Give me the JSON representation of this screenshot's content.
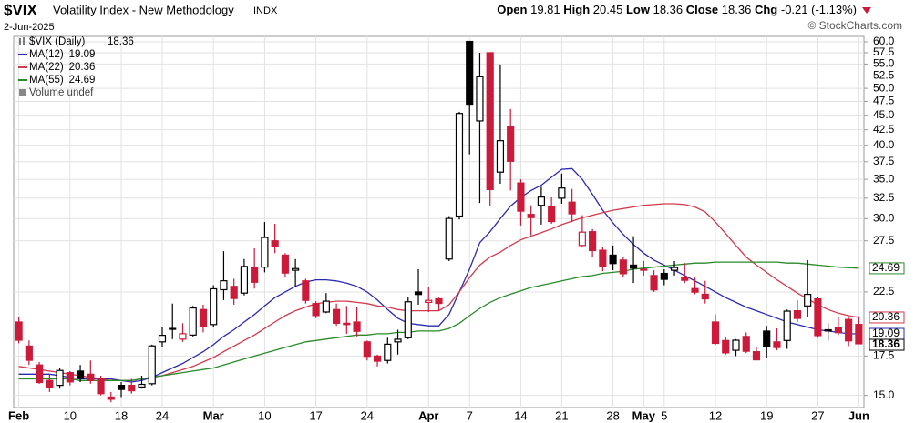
{
  "chart_data": {
    "type": "candlestick",
    "title": "$VIX",
    "subtitle": "Volatility Index - New Methodology",
    "exchange": "INDX",
    "date": "2-Jun-2025",
    "header_labels": [
      "Open",
      "High",
      "Low",
      "Close",
      "Chg"
    ],
    "change": -0.21,
    "change_pct": {
      "value": -1.13,
      "label": "(-1.13%)"
    },
    "watermark": "© StockCharts.com",
    "price_name": "$VIX (Daily)",
    "volume_label": "Volume undef",
    "categories": [
      "Feb",
      null,
      null,
      null,
      null,
      "10",
      null,
      null,
      null,
      null,
      "18",
      null,
      null,
      null,
      "24",
      null,
      null,
      null,
      null,
      "Mar",
      null,
      null,
      null,
      null,
      "10",
      null,
      null,
      null,
      null,
      "17",
      null,
      null,
      null,
      null,
      "24",
      null,
      null,
      null,
      null,
      null,
      "Apr",
      null,
      null,
      null,
      "7",
      null,
      null,
      null,
      null,
      "14",
      null,
      null,
      null,
      "21",
      null,
      null,
      null,
      null,
      "28",
      null,
      null,
      "May",
      null,
      "5",
      null,
      null,
      null,
      null,
      "12",
      null,
      null,
      null,
      null,
      "19",
      null,
      null,
      null,
      null,
      "27",
      null,
      null,
      null,
      "Jun"
    ],
    "open": [
      20.0,
      18.2,
      16.9,
      15.9,
      15.6,
      16.4,
      16.5,
      16.3,
      16.0,
      14.9,
      15.6,
      15.6,
      15.5,
      15.7,
      18.5,
      19.5,
      18.7,
      19.0,
      21.0,
      19.8,
      22.7,
      23.0,
      22.4,
      24.8,
      24.8,
      27.5,
      26.0,
      24.5,
      23.5,
      21.5,
      20.8,
      21.0,
      19.9,
      20.0,
      18.5,
      17.5,
      17.2,
      18.5,
      18.8,
      22.5,
      21.6,
      21.9,
      25.6,
      30.3,
      60.1,
      44.0,
      57.5,
      36.0,
      43.0,
      34.5,
      30.5,
      31.6,
      31.5,
      32.5,
      32.0,
      27.0,
      28.5,
      26.5,
      26.0,
      25.5,
      25.0,
      24.5,
      24.0,
      24.2,
      24.5,
      23.8,
      22.8,
      22.3,
      20.0,
      18.6,
      17.9,
      18.9,
      17.8,
      19.3,
      18.5,
      18.6,
      20.9,
      21.3,
      21.9,
      19.4,
      19.6,
      20.2,
      19.81
    ],
    "high": [
      20.4,
      18.6,
      17.1,
      16.3,
      16.7,
      16.5,
      16.9,
      17.2,
      16.2,
      15.2,
      15.8,
      16.0,
      16.2,
      18.3,
      19.6,
      21.5,
      19.9,
      21.3,
      21.4,
      23.1,
      26.4,
      23.7,
      25.6,
      26.7,
      29.6,
      29.4,
      26.2,
      25.6,
      23.7,
      21.7,
      22.4,
      21.5,
      21.3,
      21.2,
      18.6,
      17.6,
      18.8,
      19.4,
      22.1,
      24.6,
      22.9,
      22.0,
      30.3,
      45.6,
      60.1,
      57.5,
      57.5,
      54.9,
      46.1,
      35.0,
      31.6,
      34.0,
      32.6,
      35.8,
      33.7,
      30.4,
      28.8,
      26.8,
      27.0,
      25.8,
      28.0,
      25.4,
      24.5,
      24.6,
      25.4,
      25.2,
      23.8,
      23.5,
      20.6,
      18.9,
      18.7,
      19.2,
      18.1,
      19.7,
      19.5,
      21.0,
      21.8,
      25.5,
      22.1,
      19.9,
      20.4,
      20.4,
      20.45
    ],
    "low": [
      18.4,
      16.9,
      15.7,
      15.2,
      15.4,
      15.6,
      15.8,
      15.7,
      15.0,
      14.6,
      14.9,
      15.1,
      15.4,
      15.6,
      18.1,
      18.7,
      18.5,
      18.9,
      19.2,
      19.6,
      21.8,
      21.4,
      22.2,
      22.8,
      24.3,
      26.2,
      23.8,
      22.9,
      21.5,
      20.3,
      20.7,
      19.7,
      19.1,
      18.9,
      17.2,
      16.8,
      17.0,
      17.6,
      18.7,
      21.4,
      20.8,
      20.9,
      25.4,
      29.9,
      38.6,
      31.9,
      31.5,
      34.4,
      33.5,
      29.2,
      28.1,
      29.3,
      29.4,
      31.8,
      29.6,
      26.8,
      25.8,
      24.4,
      24.5,
      23.8,
      23.3,
      24.0,
      22.5,
      23.1,
      24.0,
      23.3,
      22.3,
      21.5,
      18.3,
      17.6,
      17.5,
      17.7,
      17.2,
      17.4,
      17.9,
      18.0,
      20.0,
      20.4,
      18.8,
      18.6,
      19.0,
      18.2,
      18.36
    ],
    "close": [
      18.62,
      17.21,
      15.77,
      15.5,
      16.54,
      15.81,
      16.02,
      15.89,
      15.1,
      14.77,
      15.35,
      15.27,
      15.66,
      18.21,
      18.98,
      19.43,
      19.1,
      21.13,
      19.63,
      22.78,
      23.51,
      21.93,
      24.87,
      23.37,
      27.86,
      26.92,
      24.23,
      24.66,
      21.77,
      20.51,
      21.7,
      19.9,
      19.8,
      19.28,
      17.48,
      17.15,
      18.33,
      18.69,
      21.65,
      22.28,
      21.77,
      21.51,
      30.02,
      45.31,
      46.98,
      52.33,
      33.62,
      40.72,
      37.56,
      30.89,
      30.12,
      32.64,
      29.65,
      33.82,
      30.57,
      28.45,
      26.47,
      24.84,
      25.15,
      24.17,
      24.7,
      24.6,
      22.68,
      23.64,
      24.76,
      23.55,
      22.48,
      21.9,
      18.39,
      17.72,
      18.62,
      17.83,
      17.24,
      18.14,
      18.09,
      20.87,
      20.28,
      22.29,
      18.96,
      19.31,
      19.18,
      18.57,
      18.36
    ],
    "up_color": "#000000",
    "down_color": "#cc1a3a",
    "series": [
      {
        "name": "MA(12)",
        "color": "#2a2ab0",
        "values": [
          16.3,
          16.3,
          16.3,
          16.3,
          16.2,
          16.1,
          16.0,
          16.0,
          16.0,
          16.0,
          15.9,
          15.8,
          15.9,
          16.1,
          16.4,
          16.7,
          17.0,
          17.4,
          17.8,
          18.3,
          18.9,
          19.4,
          20.0,
          20.6,
          21.3,
          22.0,
          22.5,
          23.0,
          23.4,
          23.6,
          23.6,
          23.5,
          23.3,
          23.0,
          22.5,
          21.8,
          21.0,
          20.3,
          19.9,
          19.8,
          19.7,
          19.7,
          20.6,
          22.5,
          24.6,
          27.3,
          28.5,
          30.0,
          31.5,
          32.6,
          33.5,
          34.2,
          35.3,
          36.4,
          36.5,
          35.0,
          33.0,
          31.0,
          29.5,
          28.2,
          27.1,
          26.2,
          25.5,
          25.0,
          24.5,
          24.0,
          23.5,
          23.0,
          22.5,
          22.0,
          21.6,
          21.2,
          20.9,
          20.6,
          20.3,
          20.0,
          19.8,
          19.6,
          19.4,
          19.3,
          19.2,
          19.1,
          19.09
        ]
      },
      {
        "name": "MA(22)",
        "color": "#d23a4e",
        "values": [
          16.8,
          16.7,
          16.6,
          16.5,
          16.4,
          16.3,
          16.2,
          16.1,
          16.0,
          15.9,
          15.9,
          15.9,
          16.0,
          16.1,
          16.2,
          16.4,
          16.6,
          16.8,
          17.1,
          17.4,
          17.8,
          18.2,
          18.6,
          19.0,
          19.5,
          20.0,
          20.5,
          20.9,
          21.2,
          21.5,
          21.6,
          21.7,
          21.7,
          21.6,
          21.5,
          21.3,
          21.2,
          21.0,
          20.9,
          20.9,
          20.9,
          20.9,
          21.4,
          22.5,
          23.8,
          25.0,
          25.8,
          26.3,
          27.0,
          27.6,
          28.0,
          28.4,
          28.8,
          29.3,
          29.7,
          30.1,
          30.4,
          30.7,
          31.0,
          31.2,
          31.4,
          31.6,
          31.7,
          31.8,
          31.8,
          31.7,
          31.4,
          30.8,
          29.6,
          28.3,
          27.0,
          25.8,
          25.0,
          24.3,
          23.6,
          23.0,
          22.4,
          21.9,
          21.4,
          21.0,
          20.7,
          20.5,
          20.36
        ]
      },
      {
        "name": "MA(55)",
        "color": "#2a8a2a",
        "values": [
          16.0,
          16.0,
          16.0,
          16.0,
          16.0,
          16.0,
          15.9,
          15.9,
          15.9,
          15.9,
          15.9,
          15.9,
          16.0,
          16.1,
          16.2,
          16.3,
          16.4,
          16.5,
          16.6,
          16.7,
          16.9,
          17.1,
          17.3,
          17.5,
          17.7,
          17.9,
          18.1,
          18.3,
          18.5,
          18.6,
          18.7,
          18.8,
          18.9,
          19.0,
          19.0,
          19.1,
          19.1,
          19.2,
          19.2,
          19.3,
          19.3,
          19.3,
          19.5,
          19.9,
          20.5,
          21.1,
          21.6,
          22.0,
          22.3,
          22.6,
          22.9,
          23.1,
          23.3,
          23.5,
          23.7,
          23.9,
          24.0,
          24.2,
          24.3,
          24.4,
          24.6,
          24.7,
          24.8,
          24.9,
          25.0,
          25.1,
          25.2,
          25.2,
          25.3,
          25.3,
          25.3,
          25.3,
          25.3,
          25.3,
          25.3,
          25.2,
          25.2,
          25.1,
          25.0,
          24.9,
          24.8,
          24.75,
          24.69
        ]
      }
    ],
    "log_scale": true,
    "ylim": [
      14.3,
      61.3
    ],
    "yticks": [
      {
        "value": 15,
        "label": "15.0"
      },
      {
        "value": 17.5,
        "label": "17.5"
      },
      {
        "value": 22.5,
        "label": "22.5"
      },
      {
        "value": 27.5,
        "label": "27.5"
      },
      {
        "value": 30,
        "label": "30.0"
      },
      {
        "value": 32.5,
        "label": "32.5"
      },
      {
        "value": 35,
        "label": "35.0"
      },
      {
        "value": 37.5,
        "label": "37.5"
      },
      {
        "value": 40,
        "label": "40.0"
      },
      {
        "value": 42.5,
        "label": "42.5"
      },
      {
        "value": 45,
        "label": "45.0"
      },
      {
        "value": 47.5,
        "label": "47.5"
      },
      {
        "value": 50,
        "label": "50.0"
      },
      {
        "value": 52.5,
        "label": "52.5"
      },
      {
        "value": 55,
        "label": "55.0"
      },
      {
        "value": 57.5,
        "label": "57.5"
      },
      {
        "value": 60,
        "label": "60.0"
      }
    ],
    "grid": true
  }
}
